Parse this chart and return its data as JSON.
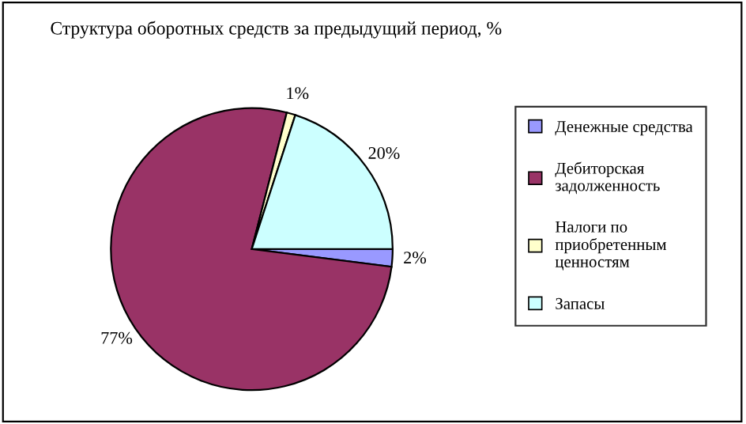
{
  "chart_data": {
    "type": "pie",
    "title": "Структура оборотных средств за предыдущий период, %",
    "categories": [
      "Денежные средства",
      "Дебиторская задолженность",
      "Налоги по приобретенным ценностям",
      "Запасы"
    ],
    "values": [
      2,
      77,
      1,
      20
    ],
    "colors": [
      "#9999ff",
      "#993366",
      "#ffffcc",
      "#ccffff"
    ],
    "value_labels": [
      "2%",
      "77%",
      "1%",
      "20%"
    ],
    "legend": "right"
  }
}
